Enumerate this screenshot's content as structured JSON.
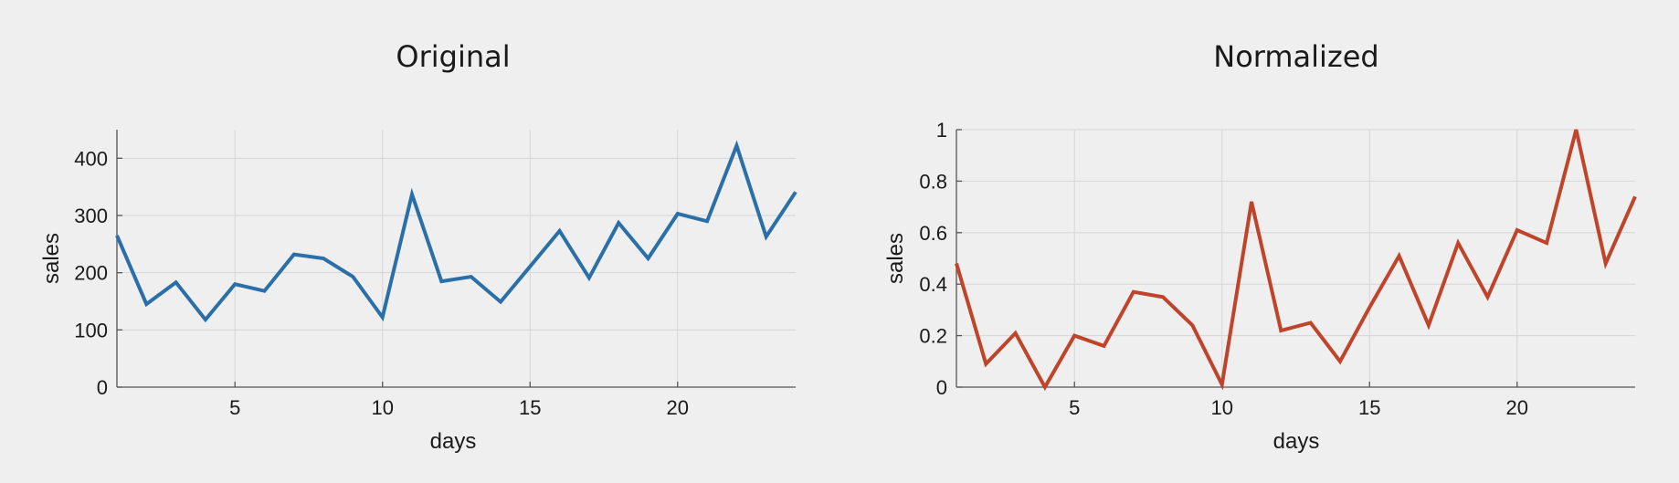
{
  "chart_data": [
    {
      "type": "line",
      "title": "Original",
      "xlabel": "days",
      "ylabel": "sales",
      "xlim": [
        1,
        24
      ],
      "ylim": [
        0,
        450
      ],
      "xticks": [
        5,
        10,
        15,
        20
      ],
      "yticks": [
        0,
        100,
        200,
        300,
        400
      ],
      "grid": true,
      "series": [
        {
          "color": "#2a6fa8",
          "x": [
            1,
            2,
            3,
            4,
            5,
            6,
            7,
            8,
            9,
            10,
            11,
            12,
            13,
            14,
            15,
            16,
            17,
            18,
            19,
            20,
            21,
            22,
            23,
            24
          ],
          "y": [
            265,
            145,
            183,
            118,
            180,
            168,
            232,
            225,
            193,
            122,
            337,
            185,
            193,
            149,
            211,
            273,
            191,
            287,
            225,
            303,
            290,
            422,
            263,
            341
          ]
        }
      ]
    },
    {
      "type": "line",
      "title": "Normalized",
      "xlabel": "days",
      "ylabel": "sales",
      "xlim": [
        1,
        24
      ],
      "ylim": [
        0,
        1
      ],
      "xticks": [
        5,
        10,
        15,
        20
      ],
      "yticks": [
        0,
        0.2,
        0.4,
        0.6,
        0.8,
        1
      ],
      "grid": true,
      "series": [
        {
          "color": "#c0442a",
          "x": [
            1,
            2,
            3,
            4,
            5,
            6,
            7,
            8,
            9,
            10,
            11,
            12,
            13,
            14,
            15,
            16,
            17,
            18,
            19,
            20,
            21,
            22,
            23,
            24
          ],
          "y": [
            0.48,
            0.09,
            0.21,
            0.0,
            0.2,
            0.16,
            0.37,
            0.35,
            0.24,
            0.01,
            0.72,
            0.22,
            0.25,
            0.1,
            0.31,
            0.51,
            0.24,
            0.56,
            0.35,
            0.61,
            0.56,
            1.0,
            0.48,
            0.74
          ]
        }
      ]
    }
  ]
}
